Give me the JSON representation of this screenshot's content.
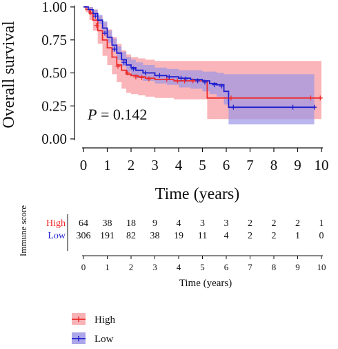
{
  "chart_data": {
    "type": "line",
    "title": "",
    "xlabel": "Time (years)",
    "ylabel": "Overall survival",
    "xlim": [
      0,
      10
    ],
    "ylim": [
      0,
      1
    ],
    "xticks": [
      "0",
      "1",
      "2",
      "3",
      "4",
      "5",
      "6",
      "7",
      "8",
      "9",
      "10"
    ],
    "yticks": [
      "0.00",
      "0.25",
      "0.50",
      "0.75",
      "1.00"
    ],
    "grid": false,
    "annotation": {
      "prefix": "P",
      "text": " = 0.142"
    },
    "series": [
      {
        "name": "High",
        "color": "#ee2a2a",
        "band_color": "#f7a3a8",
        "x": [
          0,
          0.1,
          0.25,
          0.4,
          0.6,
          0.8,
          1.0,
          1.2,
          1.4,
          1.6,
          1.8,
          2.0,
          2.3,
          2.6,
          3.0,
          3.3,
          3.8,
          4.4,
          4.9,
          5.2,
          6.0,
          7.0,
          8.0,
          9.0,
          9.7,
          10.0
        ],
        "y": [
          1.0,
          0.98,
          0.95,
          0.9,
          0.82,
          0.75,
          0.69,
          0.62,
          0.56,
          0.52,
          0.49,
          0.48,
          0.47,
          0.46,
          0.45,
          0.45,
          0.44,
          0.44,
          0.44,
          0.31,
          0.31,
          0.31,
          0.31,
          0.31,
          0.31,
          0.31
        ],
        "lower": [
          1.0,
          0.96,
          0.9,
          0.82,
          0.72,
          0.63,
          0.56,
          0.49,
          0.43,
          0.38,
          0.35,
          0.34,
          0.33,
          0.32,
          0.31,
          0.31,
          0.3,
          0.3,
          0.3,
          0.15,
          0.15,
          0.15,
          0.15,
          0.15,
          0.15,
          0.15
        ],
        "upper": [
          1.0,
          1.0,
          1.0,
          0.98,
          0.93,
          0.88,
          0.83,
          0.77,
          0.72,
          0.67,
          0.64,
          0.62,
          0.61,
          0.6,
          0.59,
          0.59,
          0.59,
          0.59,
          0.59,
          0.59,
          0.59,
          0.59,
          0.59,
          0.59,
          0.59,
          0.59
        ]
      },
      {
        "name": "Low",
        "color": "#1f1fcf",
        "band_color": "#9d96e6",
        "x": [
          0,
          0.2,
          0.4,
          0.6,
          0.8,
          1.0,
          1.2,
          1.4,
          1.6,
          1.8,
          2.0,
          2.2,
          2.5,
          3.0,
          3.5,
          4.0,
          4.5,
          5.0,
          5.3,
          5.6,
          5.9,
          6.1,
          7.0,
          8.0,
          8.8,
          9.7
        ],
        "y": [
          1.0,
          0.98,
          0.95,
          0.9,
          0.84,
          0.77,
          0.71,
          0.65,
          0.6,
          0.56,
          0.54,
          0.52,
          0.5,
          0.48,
          0.47,
          0.46,
          0.45,
          0.44,
          0.42,
          0.41,
          0.36,
          0.24,
          0.24,
          0.24,
          0.24,
          0.24
        ],
        "lower": [
          1.0,
          0.97,
          0.93,
          0.87,
          0.8,
          0.73,
          0.66,
          0.6,
          0.55,
          0.51,
          0.48,
          0.46,
          0.44,
          0.42,
          0.41,
          0.39,
          0.38,
          0.36,
          0.34,
          0.32,
          0.26,
          0.11,
          0.11,
          0.11,
          0.11,
          0.11
        ],
        "upper": [
          1.0,
          1.0,
          0.98,
          0.94,
          0.89,
          0.82,
          0.76,
          0.7,
          0.66,
          0.62,
          0.6,
          0.58,
          0.56,
          0.54,
          0.53,
          0.52,
          0.52,
          0.51,
          0.51,
          0.5,
          0.49,
          0.49,
          0.49,
          0.49,
          0.49,
          0.49
        ]
      }
    ],
    "censor_marks": [
      {
        "series": "High",
        "x": [
          0.3,
          0.55,
          1.45,
          1.85,
          2.2,
          2.45,
          2.75,
          3.5,
          3.95,
          4.25,
          4.6,
          6.2,
          9.55,
          9.95
        ],
        "y": [
          0.96,
          0.86,
          0.55,
          0.5,
          0.47,
          0.465,
          0.455,
          0.45,
          0.44,
          0.44,
          0.44,
          0.31,
          0.31,
          0.31
        ]
      },
      {
        "series": "Low",
        "x": [
          0.5,
          0.9,
          1.3,
          1.7,
          2.1,
          2.6,
          3.2,
          3.6,
          4.1,
          4.3,
          4.8,
          5.1,
          5.5,
          5.8,
          6.3,
          8.8,
          9.7
        ],
        "y": [
          0.93,
          0.8,
          0.68,
          0.58,
          0.53,
          0.5,
          0.48,
          0.47,
          0.46,
          0.455,
          0.44,
          0.43,
          0.41,
          0.4,
          0.24,
          0.24,
          0.24
        ]
      }
    ],
    "risk_table": {
      "title": "Immune score",
      "xlabel": "Time (years)",
      "times": [
        "0",
        "1",
        "2",
        "3",
        "4",
        "5",
        "6",
        "7",
        "8",
        "9",
        "10"
      ],
      "rows": [
        {
          "label": "High",
          "color": "#ee2a2a",
          "counts": [
            "64",
            "38",
            "18",
            "9",
            "4",
            "3",
            "3",
            "2",
            "2",
            "2",
            "1"
          ]
        },
        {
          "label": "Low",
          "color": "#1f1fcf",
          "counts": [
            "306",
            "191",
            "82",
            "38",
            "19",
            "11",
            "4",
            "2",
            "2",
            "1",
            "0"
          ]
        }
      ]
    },
    "legend": {
      "position": "bottom-left",
      "items": [
        {
          "label": "High",
          "color": "#ee2a2a",
          "band_color": "#f7a3a8"
        },
        {
          "label": "Low",
          "color": "#1f1fcf",
          "band_color": "#9d96e6"
        }
      ]
    }
  }
}
